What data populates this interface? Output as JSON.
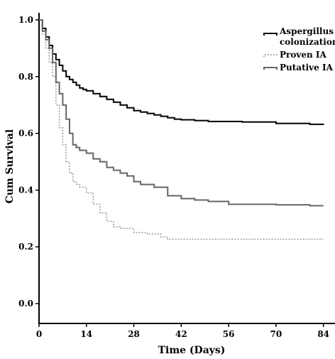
{
  "chart_data": {
    "type": "line",
    "subtype": "kaplan-meier step",
    "title": "",
    "xlabel": "Time (Days)",
    "ylabel": "Cum Survival",
    "xlim": [
      0,
      87
    ],
    "ylim": [
      -0.07,
      1.04
    ],
    "xticks": [
      0,
      14,
      28,
      42,
      56,
      70,
      84
    ],
    "yticks": [
      0.0,
      0.2,
      0.4,
      0.6,
      0.8,
      1.0
    ],
    "ytick_labels": [
      "0.0",
      "0.2",
      "0.4",
      "0.6",
      "0.8",
      "1.0"
    ],
    "grid": false,
    "legend_position": "top-right",
    "series": [
      {
        "name": "Aspergillus colonization",
        "legend_lines": [
          "Aspergillus",
          "colonization"
        ],
        "color": "#000000",
        "dash": "solid",
        "x": [
          0,
          1,
          2,
          3,
          4,
          5,
          6,
          7,
          8,
          9,
          10,
          11,
          12,
          13,
          14,
          16,
          18,
          20,
          22,
          24,
          26,
          28,
          30,
          32,
          34,
          36,
          38,
          40,
          42,
          46,
          50,
          60,
          70,
          80,
          84
        ],
        "y": [
          1.0,
          0.97,
          0.94,
          0.91,
          0.88,
          0.86,
          0.84,
          0.82,
          0.8,
          0.79,
          0.78,
          0.77,
          0.76,
          0.755,
          0.75,
          0.74,
          0.73,
          0.72,
          0.71,
          0.7,
          0.69,
          0.68,
          0.675,
          0.67,
          0.665,
          0.66,
          0.655,
          0.65,
          0.648,
          0.645,
          0.642,
          0.64,
          0.635,
          0.632,
          0.63
        ]
      },
      {
        "name": "Proven IA",
        "legend_lines": [
          "Proven IA"
        ],
        "color": "#999999",
        "dash": "dotted",
        "x": [
          0,
          1,
          2,
          3,
          4,
          5,
          6,
          7,
          8,
          9,
          10,
          11,
          12,
          14,
          16,
          18,
          20,
          22,
          24,
          28,
          32,
          36,
          38,
          84
        ],
        "y": [
          1.0,
          0.95,
          0.9,
          0.85,
          0.8,
          0.7,
          0.62,
          0.56,
          0.5,
          0.46,
          0.43,
          0.42,
          0.41,
          0.39,
          0.35,
          0.32,
          0.29,
          0.27,
          0.265,
          0.25,
          0.245,
          0.235,
          0.227,
          0.227
        ]
      },
      {
        "name": "Putative IA",
        "legend_lines": [
          "Putative IA"
        ],
        "color": "#666666",
        "dash": "solid",
        "x": [
          0,
          1,
          2,
          3,
          4,
          5,
          6,
          7,
          8,
          9,
          10,
          11,
          12,
          14,
          16,
          18,
          20,
          22,
          24,
          26,
          28,
          30,
          32,
          34,
          38,
          42,
          46,
          50,
          56,
          60,
          70,
          80,
          84
        ],
        "y": [
          1.0,
          0.96,
          0.93,
          0.9,
          0.85,
          0.78,
          0.74,
          0.7,
          0.65,
          0.6,
          0.56,
          0.55,
          0.54,
          0.53,
          0.51,
          0.5,
          0.48,
          0.47,
          0.46,
          0.45,
          0.43,
          0.42,
          0.42,
          0.41,
          0.38,
          0.37,
          0.365,
          0.36,
          0.35,
          0.35,
          0.348,
          0.345,
          0.345
        ]
      }
    ]
  }
}
